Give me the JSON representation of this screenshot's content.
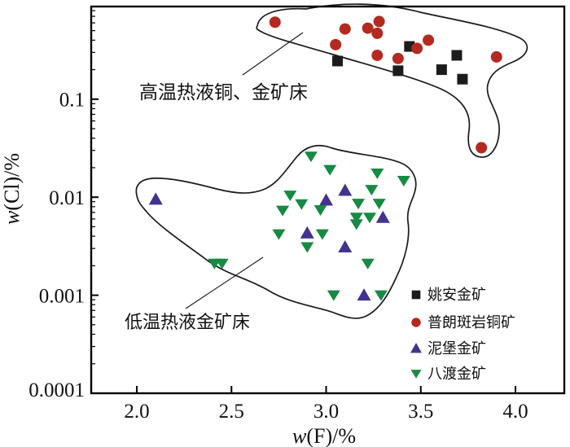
{
  "figure": {
    "background": "#ffffff",
    "frame_color": "#000000"
  },
  "chart_data": {
    "type": "scatter",
    "xlabel": "w(F)/%",
    "xlabel_var": "w",
    "xlabel_rest": "(F)/%",
    "ylabel": "w(Cl)/%",
    "ylabel_var": "w",
    "ylabel_rest": "(Cl)/%",
    "grid": false,
    "x_axis": {
      "scale": "linear",
      "range": [
        1.759,
        4.258
      ],
      "ticks": [
        2.0,
        2.5,
        3.0,
        3.5,
        4.0
      ],
      "tick_labels": [
        "2.0",
        "2.5",
        "3.0",
        "3.5",
        "4.0"
      ]
    },
    "y_axis": {
      "scale": "log",
      "range": [
        0.0001,
        0.8815
      ],
      "ticks": [
        0.1,
        0.01,
        0.001,
        0.0001
      ],
      "tick_labels": [
        "0.1",
        "0.01",
        "0.001",
        "0.0001"
      ]
    },
    "series": [
      {
        "name": "姚安金矿",
        "marker": "square",
        "color": "#1c1c1c",
        "points": [
          [
            3.06,
            0.245
          ],
          [
            3.38,
            0.195
          ],
          [
            3.44,
            0.345
          ],
          [
            3.61,
            0.2
          ],
          [
            3.69,
            0.28
          ],
          [
            3.72,
            0.16
          ]
        ]
      },
      {
        "name": "普朗斑岩铜矿",
        "marker": "circle",
        "color": "#b42a20",
        "points": [
          [
            2.73,
            0.61
          ],
          [
            3.05,
            0.36
          ],
          [
            3.1,
            0.52
          ],
          [
            3.22,
            0.53
          ],
          [
            3.27,
            0.47
          ],
          [
            3.28,
            0.62
          ],
          [
            3.27,
            0.28
          ],
          [
            3.38,
            0.26
          ],
          [
            3.48,
            0.33
          ],
          [
            3.54,
            0.4
          ],
          [
            3.82,
            0.032
          ],
          [
            3.9,
            0.27
          ]
        ]
      },
      {
        "name": "泥堡金矿",
        "marker": "triangle-up",
        "color": "#43338f",
        "points": [
          [
            2.1,
            0.0095
          ],
          [
            2.9,
            0.0043
          ],
          [
            3.0,
            0.0093
          ],
          [
            3.1,
            0.0117
          ],
          [
            3.1,
            0.0031
          ],
          [
            3.2,
            0.001
          ],
          [
            3.3,
            0.0062
          ]
        ]
      },
      {
        "name": "八渡金矿",
        "marker": "triangle-down",
        "color": "#178a43",
        "points": [
          [
            2.41,
            0.0021
          ],
          [
            2.45,
            0.0021
          ],
          [
            2.75,
            0.0042
          ],
          [
            2.77,
            0.0073
          ],
          [
            2.81,
            0.0104
          ],
          [
            2.87,
            0.0085
          ],
          [
            2.9,
            0.0031
          ],
          [
            2.92,
            0.026
          ],
          [
            2.97,
            0.0074
          ],
          [
            2.98,
            0.0042
          ],
          [
            3.02,
            0.019
          ],
          [
            3.04,
            0.001
          ],
          [
            3.16,
            0.0062
          ],
          [
            3.16,
            0.0053
          ],
          [
            3.17,
            0.0086
          ],
          [
            3.22,
            0.0021
          ],
          [
            3.23,
            0.0062
          ],
          [
            3.24,
            0.0119
          ],
          [
            3.27,
            0.0175
          ],
          [
            3.28,
            0.0086
          ],
          [
            3.29,
            0.001
          ],
          [
            3.41,
            0.0147
          ]
        ]
      }
    ],
    "annotations": [
      {
        "id": "high-temp",
        "text": "高温热液铜、金矿床"
      },
      {
        "id": "low-temp",
        "text": "低温热液金矿床"
      }
    ],
    "legend": {
      "position": "bottom-right",
      "items": [
        "姚安金矿",
        "普朗斑岩铜矿",
        "泥堡金矿",
        "八渡金矿"
      ]
    }
  }
}
